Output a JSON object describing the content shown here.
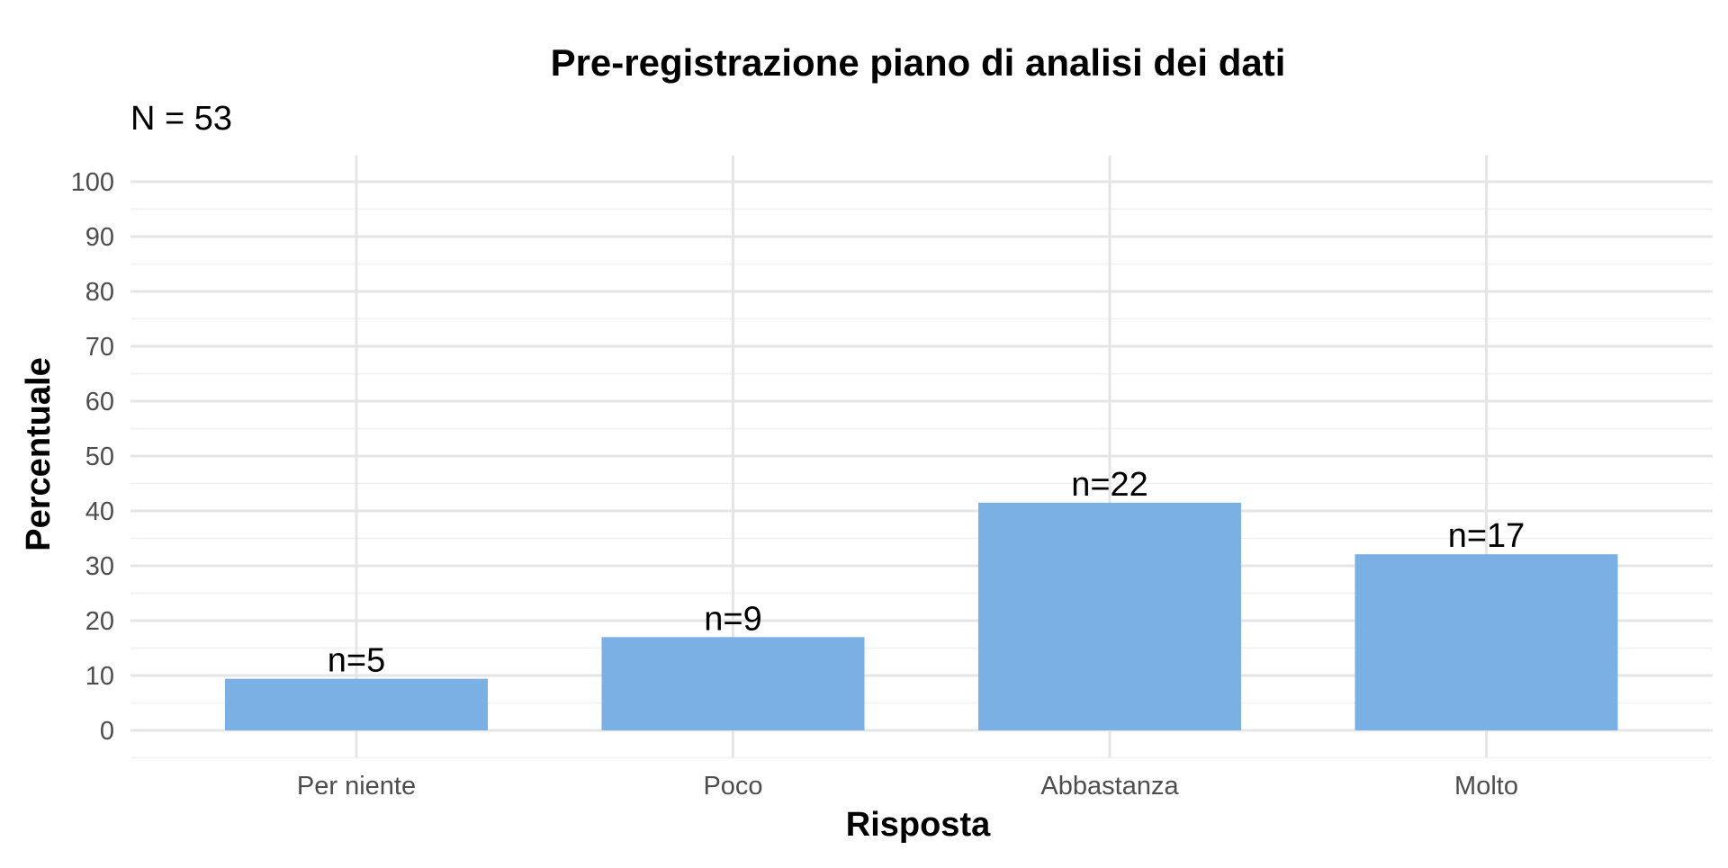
{
  "chart_data": {
    "type": "bar",
    "title": "Pre-registrazione piano di analisi dei dati",
    "subtitle": "N = 53",
    "xlabel": "Risposta",
    "ylabel": "Percentuale",
    "categories": [
      "Per niente",
      "Poco",
      "Abbastanza",
      "Molto"
    ],
    "values": [
      9.4,
      17.0,
      41.5,
      32.1
    ],
    "counts": [
      5,
      9,
      22,
      17
    ],
    "data_labels": [
      "n=5",
      "n=9",
      "n=22",
      "n=17"
    ],
    "ylim": [
      0,
      100
    ],
    "yticks": [
      0,
      10,
      20,
      30,
      40,
      50,
      60,
      70,
      80,
      90,
      100
    ],
    "grid": true,
    "bar_color": "#7ab0e3"
  }
}
